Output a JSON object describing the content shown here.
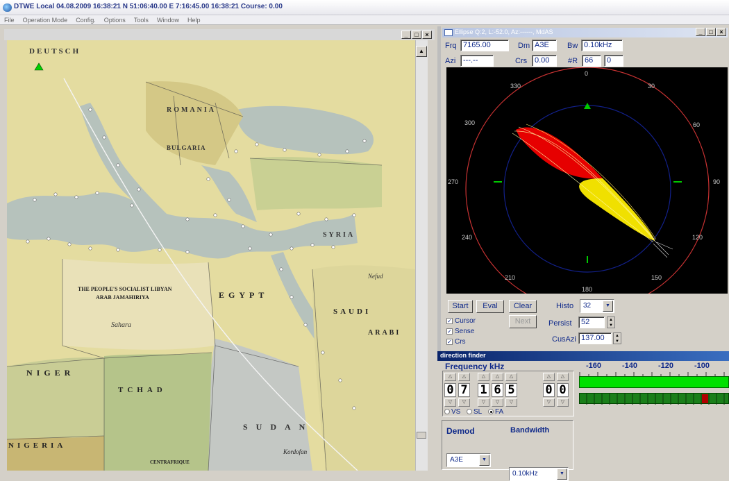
{
  "title_bar": {
    "text": "DTWE Local 04.08.2009 16:38:21  N 51:06:40.00  E 7:16:45.00  16:38:21  Course: 0.00"
  },
  "menu": [
    "File",
    "Operation Mode",
    "Config.",
    "Options",
    "Tools",
    "Window",
    "Help"
  ],
  "window_buttons": {
    "min": "_",
    "max": "□",
    "close": "×"
  },
  "map_labels": [
    {
      "text": "DEUTSCH"
    },
    {
      "text": "ROMANIA"
    },
    {
      "text": "BULGARIA"
    },
    {
      "text": "SYRIA"
    },
    {
      "text": "THE PEOPLE'S SOCIALIST LIBYAN"
    },
    {
      "text": "ARAB JAMAHIRIYA"
    },
    {
      "text": "EGYPT"
    },
    {
      "text": "SAUDI"
    },
    {
      "text": "ARABI"
    },
    {
      "text": "NIGER"
    },
    {
      "text": "TCHAD"
    },
    {
      "text": "SUDAN"
    },
    {
      "text": "NIGERIA"
    },
    {
      "text": "Kordofan"
    },
    {
      "text": "CENTRAFRIQUE"
    },
    {
      "text": "Sahara"
    },
    {
      "text": "Nefud"
    }
  ],
  "ellipse_window": {
    "title": "Ellipse Q:2, L:-52.0, Az:------, MdAS",
    "frq_label": "Frq",
    "frq_value": "7165.00",
    "dm_label": "Dm",
    "dm_value": "A3E",
    "bw_label": "Bw",
    "bw_value": "0.10kHz",
    "azi_label": "Azi",
    "azi_value": "---.--",
    "crs_label": "Crs",
    "crs_value": "0.00",
    "r_label": "#R",
    "r_value1": "66",
    "r_value2": "0",
    "polar_labels": [
      "0",
      "30",
      "60",
      "90",
      "120",
      "150",
      "180",
      "210",
      "240",
      "270",
      "300",
      "330"
    ],
    "start_label": "Start",
    "eval_label": "Eval",
    "clear_label": "Clear",
    "next_label": "Next",
    "histo_label": "Histo",
    "histo_value": "32",
    "persist_label": "Persist",
    "persist_value": "52",
    "cusazi_label": "CusAzi",
    "cusazi_value": "137.00",
    "checkboxes": [
      {
        "label": "Cursor",
        "checked": true
      },
      {
        "label": "Sense",
        "checked": true
      },
      {
        "label": "Crs",
        "checked": true
      }
    ],
    "colors": {
      "ellipse_near": "#e60000",
      "ellipse_far": "#f0e000",
      "ring": "#c83232",
      "inner_ring": "#12208a",
      "marker": "#00c800"
    }
  },
  "direction_finder": {
    "title": "direction finder",
    "freq_label": "Frequency kHz",
    "digits": [
      "0",
      "7",
      "1",
      "6",
      "5",
      "0",
      "0"
    ],
    "radios": [
      {
        "label": "VS",
        "on": false
      },
      {
        "label": "SL",
        "on": false
      },
      {
        "label": "FA",
        "on": true
      }
    ],
    "demod_label": "Demod",
    "demod_value": "A3E",
    "bandwidth_label": "Bandwidth",
    "bandwidth_value": "0.10kHz",
    "scale": [
      "-160",
      "-140",
      "-120",
      "-100"
    ],
    "colors": {
      "level": "#00e000",
      "bar": "#1a7f1a",
      "peak": "#b00000"
    }
  }
}
